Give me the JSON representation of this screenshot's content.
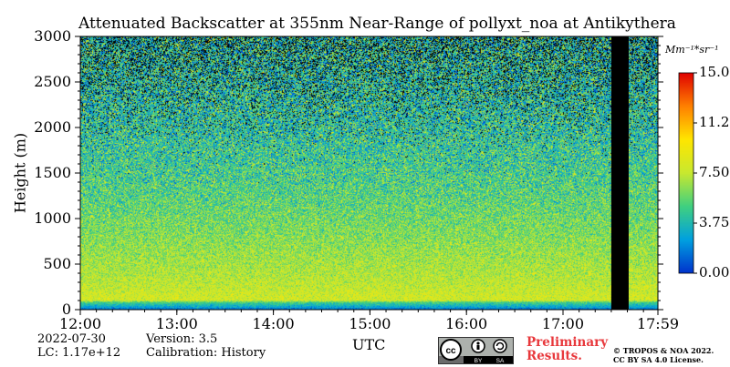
{
  "chart_data": {
    "type": "heatmap",
    "title": "Attenuated Backscatter at 355nm Near-Range of pollyxt_noa at Antikythera",
    "xlabel": "UTC",
    "ylabel": "Height (m)",
    "x_ticks": [
      "12:00",
      "13:00",
      "14:00",
      "15:00",
      "16:00",
      "17:00",
      "17:59"
    ],
    "x_tick_hours": [
      12.0,
      13.0,
      14.0,
      15.0,
      16.0,
      17.0,
      17.983
    ],
    "xlim_hours": [
      12.0,
      17.983
    ],
    "y_ticks": [
      "0",
      "500",
      "1000",
      "1500",
      "2000",
      "2500",
      "3000"
    ],
    "y_tick_values": [
      0,
      500,
      1000,
      1500,
      2000,
      2500,
      3000
    ],
    "ylim": [
      0,
      3000
    ],
    "colorbar": {
      "unit": "Mm⁻¹*sr⁻¹",
      "ticks": [
        "0.00",
        "3.75",
        "7.50",
        "11.25",
        "15.00"
      ],
      "tick_values": [
        0,
        3.75,
        7.5,
        11.25,
        15.0
      ],
      "range": [
        0,
        15
      ],
      "colors": [
        "#0033cc",
        "#00a0e0",
        "#40d080",
        "#c8e830",
        "#ffe600",
        "#ff8000",
        "#e00000"
      ]
    },
    "no_data_interval_hours": [
      17.5,
      17.68
    ],
    "profile": {
      "heights": [
        0,
        80,
        100,
        300,
        600,
        1000,
        1500,
        2000,
        2500,
        3000
      ],
      "mean_values": [
        1.5,
        5.0,
        8.0,
        7.4,
        6.7,
        5.8,
        4.8,
        4.1,
        3.6,
        3.3
      ]
    }
  },
  "footer": {
    "date": "2022-07-30",
    "lc": "LC: 1.17e+12",
    "version": "Version: 3.5",
    "calibration": "Calibration: History",
    "prelim_line1": "Preliminary",
    "prelim_line2": "Results.",
    "copyright_line1": "© TROPOS & NOA 2022.",
    "copyright_line2": "CC BY SA 4.0 License.",
    "cc_badge": "cc by sa",
    "cc_by": "BY",
    "cc_sa": "SA"
  },
  "icons": {
    "license": "cc-by-sa-icon"
  }
}
